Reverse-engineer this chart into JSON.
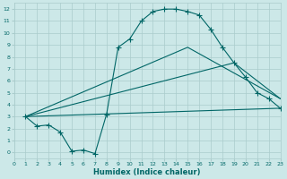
{
  "xlabel": "Humidex (Indice chaleur)",
  "bg_color": "#cce8e8",
  "grid_color": "#aacccc",
  "line_color": "#006666",
  "xlim": [
    0,
    23
  ],
  "ylim": [
    -0.5,
    12.5
  ],
  "xticks": [
    0,
    1,
    2,
    3,
    4,
    5,
    6,
    7,
    8,
    9,
    10,
    11,
    12,
    13,
    14,
    15,
    16,
    17,
    18,
    19,
    20,
    21,
    22,
    23
  ],
  "yticks": [
    0,
    1,
    2,
    3,
    4,
    5,
    6,
    7,
    8,
    9,
    10,
    11,
    12
  ],
  "main_x": [
    1,
    2,
    3,
    4,
    5,
    6,
    7,
    8,
    9,
    10,
    11,
    12,
    13,
    14,
    15,
    16,
    17,
    18,
    19,
    20,
    21,
    22,
    23
  ],
  "main_y": [
    3.0,
    2.2,
    2.3,
    1.7,
    0.1,
    0.2,
    -0.1,
    3.2,
    8.8,
    9.5,
    11.0,
    11.8,
    12.0,
    12.0,
    11.8,
    11.5,
    10.3,
    8.8,
    7.5,
    6.3,
    5.0,
    4.5,
    3.7
  ],
  "line1_x": [
    1,
    23
  ],
  "line1_y": [
    3.0,
    3.7
  ],
  "line2_x": [
    1,
    19,
    23
  ],
  "line2_y": [
    3.0,
    7.5,
    4.5
  ],
  "line3_x": [
    1,
    15,
    23
  ],
  "line3_y": [
    3.0,
    8.8,
    4.5
  ]
}
